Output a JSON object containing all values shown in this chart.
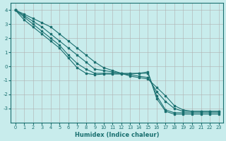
{
  "xlabel": "Humidex (Indice chaleur)",
  "bg_color": "#c8ecec",
  "grid_color": "#b0b0b0",
  "line_color": "#1a7070",
  "lines": [
    {
      "x": [
        0,
        1,
        2,
        3,
        4,
        5,
        6,
        7,
        8,
        9,
        10,
        11,
        12,
        13,
        14,
        15,
        16,
        17,
        18,
        19,
        20,
        21,
        22,
        23
      ],
      "y": [
        4.0,
        3.7,
        3.4,
        3.1,
        2.8,
        2.3,
        1.8,
        1.3,
        0.8,
        0.3,
        -0.1,
        -0.3,
        -0.5,
        -0.7,
        -0.8,
        -0.9,
        -1.5,
        -2.1,
        -2.8,
        -3.1,
        -3.2,
        -3.2,
        -3.2,
        -3.2
      ]
    },
    {
      "x": [
        0,
        1,
        2,
        3,
        4,
        5,
        6,
        7,
        8,
        9,
        10,
        11,
        12,
        13,
        14,
        15,
        16,
        17,
        18,
        19,
        20,
        21,
        22,
        23
      ],
      "y": [
        4.0,
        3.6,
        3.2,
        2.8,
        2.3,
        1.8,
        1.3,
        0.8,
        0.3,
        -0.2,
        -0.3,
        -0.4,
        -0.5,
        -0.6,
        -0.7,
        -0.8,
        -1.8,
        -2.5,
        -3.0,
        -3.2,
        -3.2,
        -3.2,
        -3.2,
        -3.2
      ]
    },
    {
      "x": [
        0,
        1,
        2,
        3,
        4,
        5,
        6,
        7,
        8,
        9,
        10,
        11,
        12,
        13,
        14,
        15,
        16,
        17,
        18,
        19,
        20,
        21,
        22,
        23
      ],
      "y": [
        4.0,
        3.5,
        3.0,
        2.5,
        2.0,
        1.5,
        0.8,
        0.2,
        -0.2,
        -0.5,
        -0.5,
        -0.5,
        -0.5,
        -0.5,
        -0.5,
        -0.5,
        -2.1,
        -3.1,
        -3.3,
        -3.3,
        -3.3,
        -3.3,
        -3.3,
        -3.3
      ]
    },
    {
      "x": [
        0,
        1,
        2,
        3,
        4,
        5,
        6,
        7,
        8,
        9,
        10,
        11,
        12,
        13,
        14,
        15,
        16,
        17,
        18,
        19,
        20,
        21,
        22,
        23
      ],
      "y": [
        4.0,
        3.3,
        2.8,
        2.3,
        1.8,
        1.3,
        0.6,
        -0.1,
        -0.5,
        -0.6,
        -0.55,
        -0.55,
        -0.55,
        -0.55,
        -0.5,
        -0.4,
        -2.3,
        -3.2,
        -3.4,
        -3.4,
        -3.4,
        -3.4,
        -3.4,
        -3.4
      ]
    }
  ],
  "ylim": [
    -4,
    4.5
  ],
  "yticks": [
    -3,
    -2,
    -1,
    0,
    1,
    2,
    3,
    4
  ],
  "xlim": [
    -0.5,
    23.5
  ],
  "xticks": [
    0,
    1,
    2,
    3,
    4,
    5,
    6,
    7,
    8,
    9,
    10,
    11,
    12,
    13,
    14,
    15,
    16,
    17,
    18,
    19,
    20,
    21,
    22,
    23
  ]
}
